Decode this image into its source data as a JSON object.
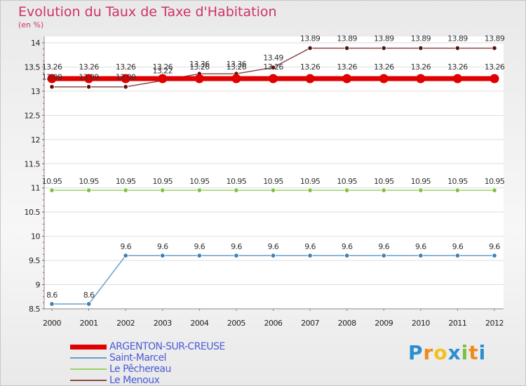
{
  "chart_data": {
    "type": "line",
    "title": "Evolution du Taux de Taxe d'Habitation",
    "subtitle": "(en %)",
    "xlabel": "",
    "ylabel": "",
    "x": [
      "2000",
      "2001",
      "2002",
      "2003",
      "2004",
      "2005",
      "2006",
      "2007",
      "2008",
      "2009",
      "2010",
      "2011",
      "2012"
    ],
    "ylim": [
      8.5,
      14
    ],
    "yticks": [
      8.5,
      9,
      9.5,
      10,
      10.5,
      11,
      11.5,
      12,
      12.5,
      13,
      13.5,
      14
    ],
    "ytick_labels": [
      "8.5",
      "9",
      "9.5",
      "10",
      "10.5",
      "11",
      "11.5",
      "12",
      "12.5",
      "13",
      "13.5",
      "14"
    ],
    "legend_position": "bottom-left",
    "series": [
      {
        "name": "ARGENTON-SUR-CREUSE",
        "color": "#e00000",
        "emphasis": "thick",
        "values": [
          13.26,
          13.26,
          13.26,
          13.26,
          13.26,
          13.26,
          13.26,
          13.26,
          13.26,
          13.26,
          13.26,
          13.26,
          13.26
        ],
        "labels": [
          "13.26",
          "13.26",
          "13.26",
          "13.26",
          "13.26",
          "13.26",
          "13.26",
          "13.26",
          "13.26",
          "13.26",
          "13.26",
          "13.26",
          "13.26"
        ]
      },
      {
        "name": "Saint-Marcel",
        "color": "#6a9ec8",
        "marker_color": "#3f7fb3",
        "values": [
          8.6,
          8.6,
          9.6,
          9.6,
          9.6,
          9.6,
          9.6,
          9.6,
          9.6,
          9.6,
          9.6,
          9.6,
          9.6
        ],
        "labels": [
          "8.6",
          "8.6",
          "9.6",
          "9.6",
          "9.6",
          "9.6",
          "9.6",
          "9.6",
          "9.6",
          "9.6",
          "9.6",
          "9.6",
          "9.6"
        ]
      },
      {
        "name": "Le Pêchereau",
        "color": "#9ad26a",
        "marker_color": "#7cc142",
        "values": [
          10.95,
          10.95,
          10.95,
          10.95,
          10.95,
          10.95,
          10.95,
          10.95,
          10.95,
          10.95,
          10.95,
          10.95,
          10.95
        ],
        "labels": [
          "10.95",
          "10.95",
          "10.95",
          "10.95",
          "10.95",
          "10.95",
          "10.95",
          "10.95",
          "10.95",
          "10.95",
          "10.95",
          "10.95",
          "10.95"
        ]
      },
      {
        "name": "Le Menoux",
        "color": "#8b4a4a",
        "marker_color": "#5a1010",
        "values": [
          13.09,
          13.09,
          13.09,
          13.22,
          13.36,
          13.36,
          13.49,
          13.89,
          13.89,
          13.89,
          13.89,
          13.89,
          13.89
        ],
        "labels": [
          "13.09",
          "13.09",
          "13.09",
          "13.22",
          "13.36",
          "13.36",
          "13.49",
          "13.89",
          "13.89",
          "13.89",
          "13.89",
          "13.89",
          "13.89"
        ]
      }
    ]
  },
  "legend": {
    "items": [
      {
        "label": "ARGENTON-SUR-CREUSE",
        "color": "#e00000",
        "text_color": "#4a5ad8"
      },
      {
        "label": "Saint-Marcel",
        "color": "#6a9ec8",
        "text_color": "#4a5ad8"
      },
      {
        "label": "Le Pêchereau",
        "color": "#9ad26a",
        "text_color": "#4a5ad8"
      },
      {
        "label": "Le Menoux",
        "color": "#8b4a4a",
        "text_color": "#4a5ad8"
      }
    ]
  },
  "brand": {
    "letters": [
      "P",
      "r",
      "o",
      "x",
      "i",
      "t",
      "i"
    ],
    "colors": [
      "#2a8fd0",
      "#f08a1c",
      "#f2c21a",
      "#2a8fd0",
      "#7cc142",
      "#f08a1c",
      "#2a8fd0"
    ]
  }
}
